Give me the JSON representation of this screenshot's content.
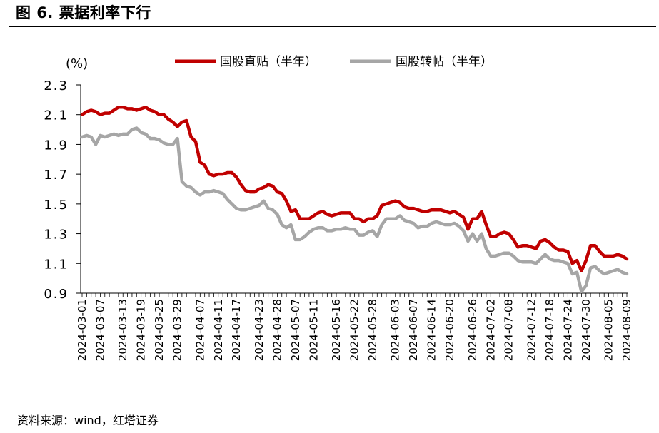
{
  "figure": {
    "title": "图 6. 票据利率下行",
    "source": "资料来源：wind，红塔证券"
  },
  "chart_data": {
    "type": "line",
    "unit_label": "(%)",
    "ylim": [
      0.9,
      2.3
    ],
    "yticks": [
      "2.3",
      "2.1",
      "1.9",
      "1.7",
      "1.5",
      "1.3",
      "1.1",
      "0.9"
    ],
    "ytick_values": [
      2.3,
      2.1,
      1.9,
      1.7,
      1.5,
      1.3,
      1.1,
      0.9
    ],
    "x_tick_labels": [
      "2024-03-01",
      "2024-03-07",
      "2024-03-13",
      "2024-03-19",
      "2024-03-25",
      "2024-03-29",
      "2024-04-07",
      "2024-04-11",
      "2024-04-17",
      "2024-04-23",
      "2024-04-28",
      "2024-05-07",
      "2024-05-11",
      "2024-05-16",
      "2024-05-22",
      "2024-05-28",
      "2024-06-03",
      "2024-06-07",
      "2024-06-14",
      "2024-06-20",
      "2024-06-26",
      "2024-07-02",
      "2024-07-08",
      "2024-07-12",
      "2024-07-18",
      "2024-07-24",
      "2024-07-30",
      "2024-08-05",
      "2024-08-09"
    ],
    "legend_position": "top",
    "grid": false,
    "series": [
      {
        "name": "国股直贴（半年）",
        "color": "#c00000",
        "values": [
          2.1,
          2.12,
          2.13,
          2.12,
          2.1,
          2.11,
          2.11,
          2.13,
          2.15,
          2.15,
          2.14,
          2.14,
          2.13,
          2.14,
          2.15,
          2.13,
          2.12,
          2.1,
          2.1,
          2.07,
          2.05,
          2.02,
          2.05,
          2.06,
          1.95,
          1.92,
          1.78,
          1.76,
          1.7,
          1.69,
          1.7,
          1.7,
          1.71,
          1.71,
          1.68,
          1.63,
          1.59,
          1.58,
          1.58,
          1.6,
          1.61,
          1.63,
          1.62,
          1.58,
          1.57,
          1.52,
          1.45,
          1.46,
          1.4,
          1.4,
          1.4,
          1.42,
          1.44,
          1.45,
          1.43,
          1.42,
          1.43,
          1.44,
          1.44,
          1.44,
          1.4,
          1.4,
          1.38,
          1.4,
          1.4,
          1.42,
          1.49,
          1.5,
          1.51,
          1.52,
          1.51,
          1.48,
          1.47,
          1.47,
          1.46,
          1.45,
          1.45,
          1.46,
          1.46,
          1.46,
          1.45,
          1.44,
          1.45,
          1.43,
          1.41,
          1.33,
          1.4,
          1.4,
          1.45,
          1.36,
          1.28,
          1.28,
          1.3,
          1.31,
          1.3,
          1.26,
          1.21,
          1.22,
          1.22,
          1.21,
          1.2,
          1.25,
          1.26,
          1.24,
          1.21,
          1.19,
          1.19,
          1.18,
          1.1,
          1.12,
          1.05,
          1.12,
          1.22,
          1.22,
          1.18,
          1.15,
          1.15,
          1.15,
          1.16,
          1.15,
          1.13
        ]
      },
      {
        "name": "国股转帖（半年）",
        "color": "#a6a6a6",
        "values": [
          1.95,
          1.96,
          1.95,
          1.9,
          1.96,
          1.95,
          1.96,
          1.97,
          1.96,
          1.97,
          1.97,
          2.0,
          2.01,
          1.98,
          1.97,
          1.94,
          1.94,
          1.93,
          1.91,
          1.9,
          1.9,
          1.94,
          1.65,
          1.62,
          1.61,
          1.58,
          1.56,
          1.58,
          1.58,
          1.59,
          1.58,
          1.57,
          1.53,
          1.5,
          1.47,
          1.46,
          1.46,
          1.47,
          1.48,
          1.49,
          1.52,
          1.47,
          1.46,
          1.43,
          1.36,
          1.34,
          1.36,
          1.26,
          1.26,
          1.28,
          1.31,
          1.33,
          1.34,
          1.34,
          1.32,
          1.32,
          1.33,
          1.33,
          1.34,
          1.33,
          1.33,
          1.29,
          1.29,
          1.31,
          1.32,
          1.28,
          1.36,
          1.4,
          1.4,
          1.4,
          1.42,
          1.39,
          1.38,
          1.37,
          1.34,
          1.35,
          1.35,
          1.37,
          1.38,
          1.37,
          1.36,
          1.36,
          1.37,
          1.35,
          1.32,
          1.25,
          1.3,
          1.25,
          1.3,
          1.2,
          1.15,
          1.15,
          1.16,
          1.17,
          1.17,
          1.15,
          1.12,
          1.11,
          1.11,
          1.11,
          1.1,
          1.13,
          1.16,
          1.13,
          1.12,
          1.12,
          1.11,
          1.1,
          1.03,
          1.04,
          0.91,
          0.95,
          1.07,
          1.08,
          1.05,
          1.03,
          1.04,
          1.05,
          1.06,
          1.04,
          1.03
        ]
      }
    ]
  }
}
